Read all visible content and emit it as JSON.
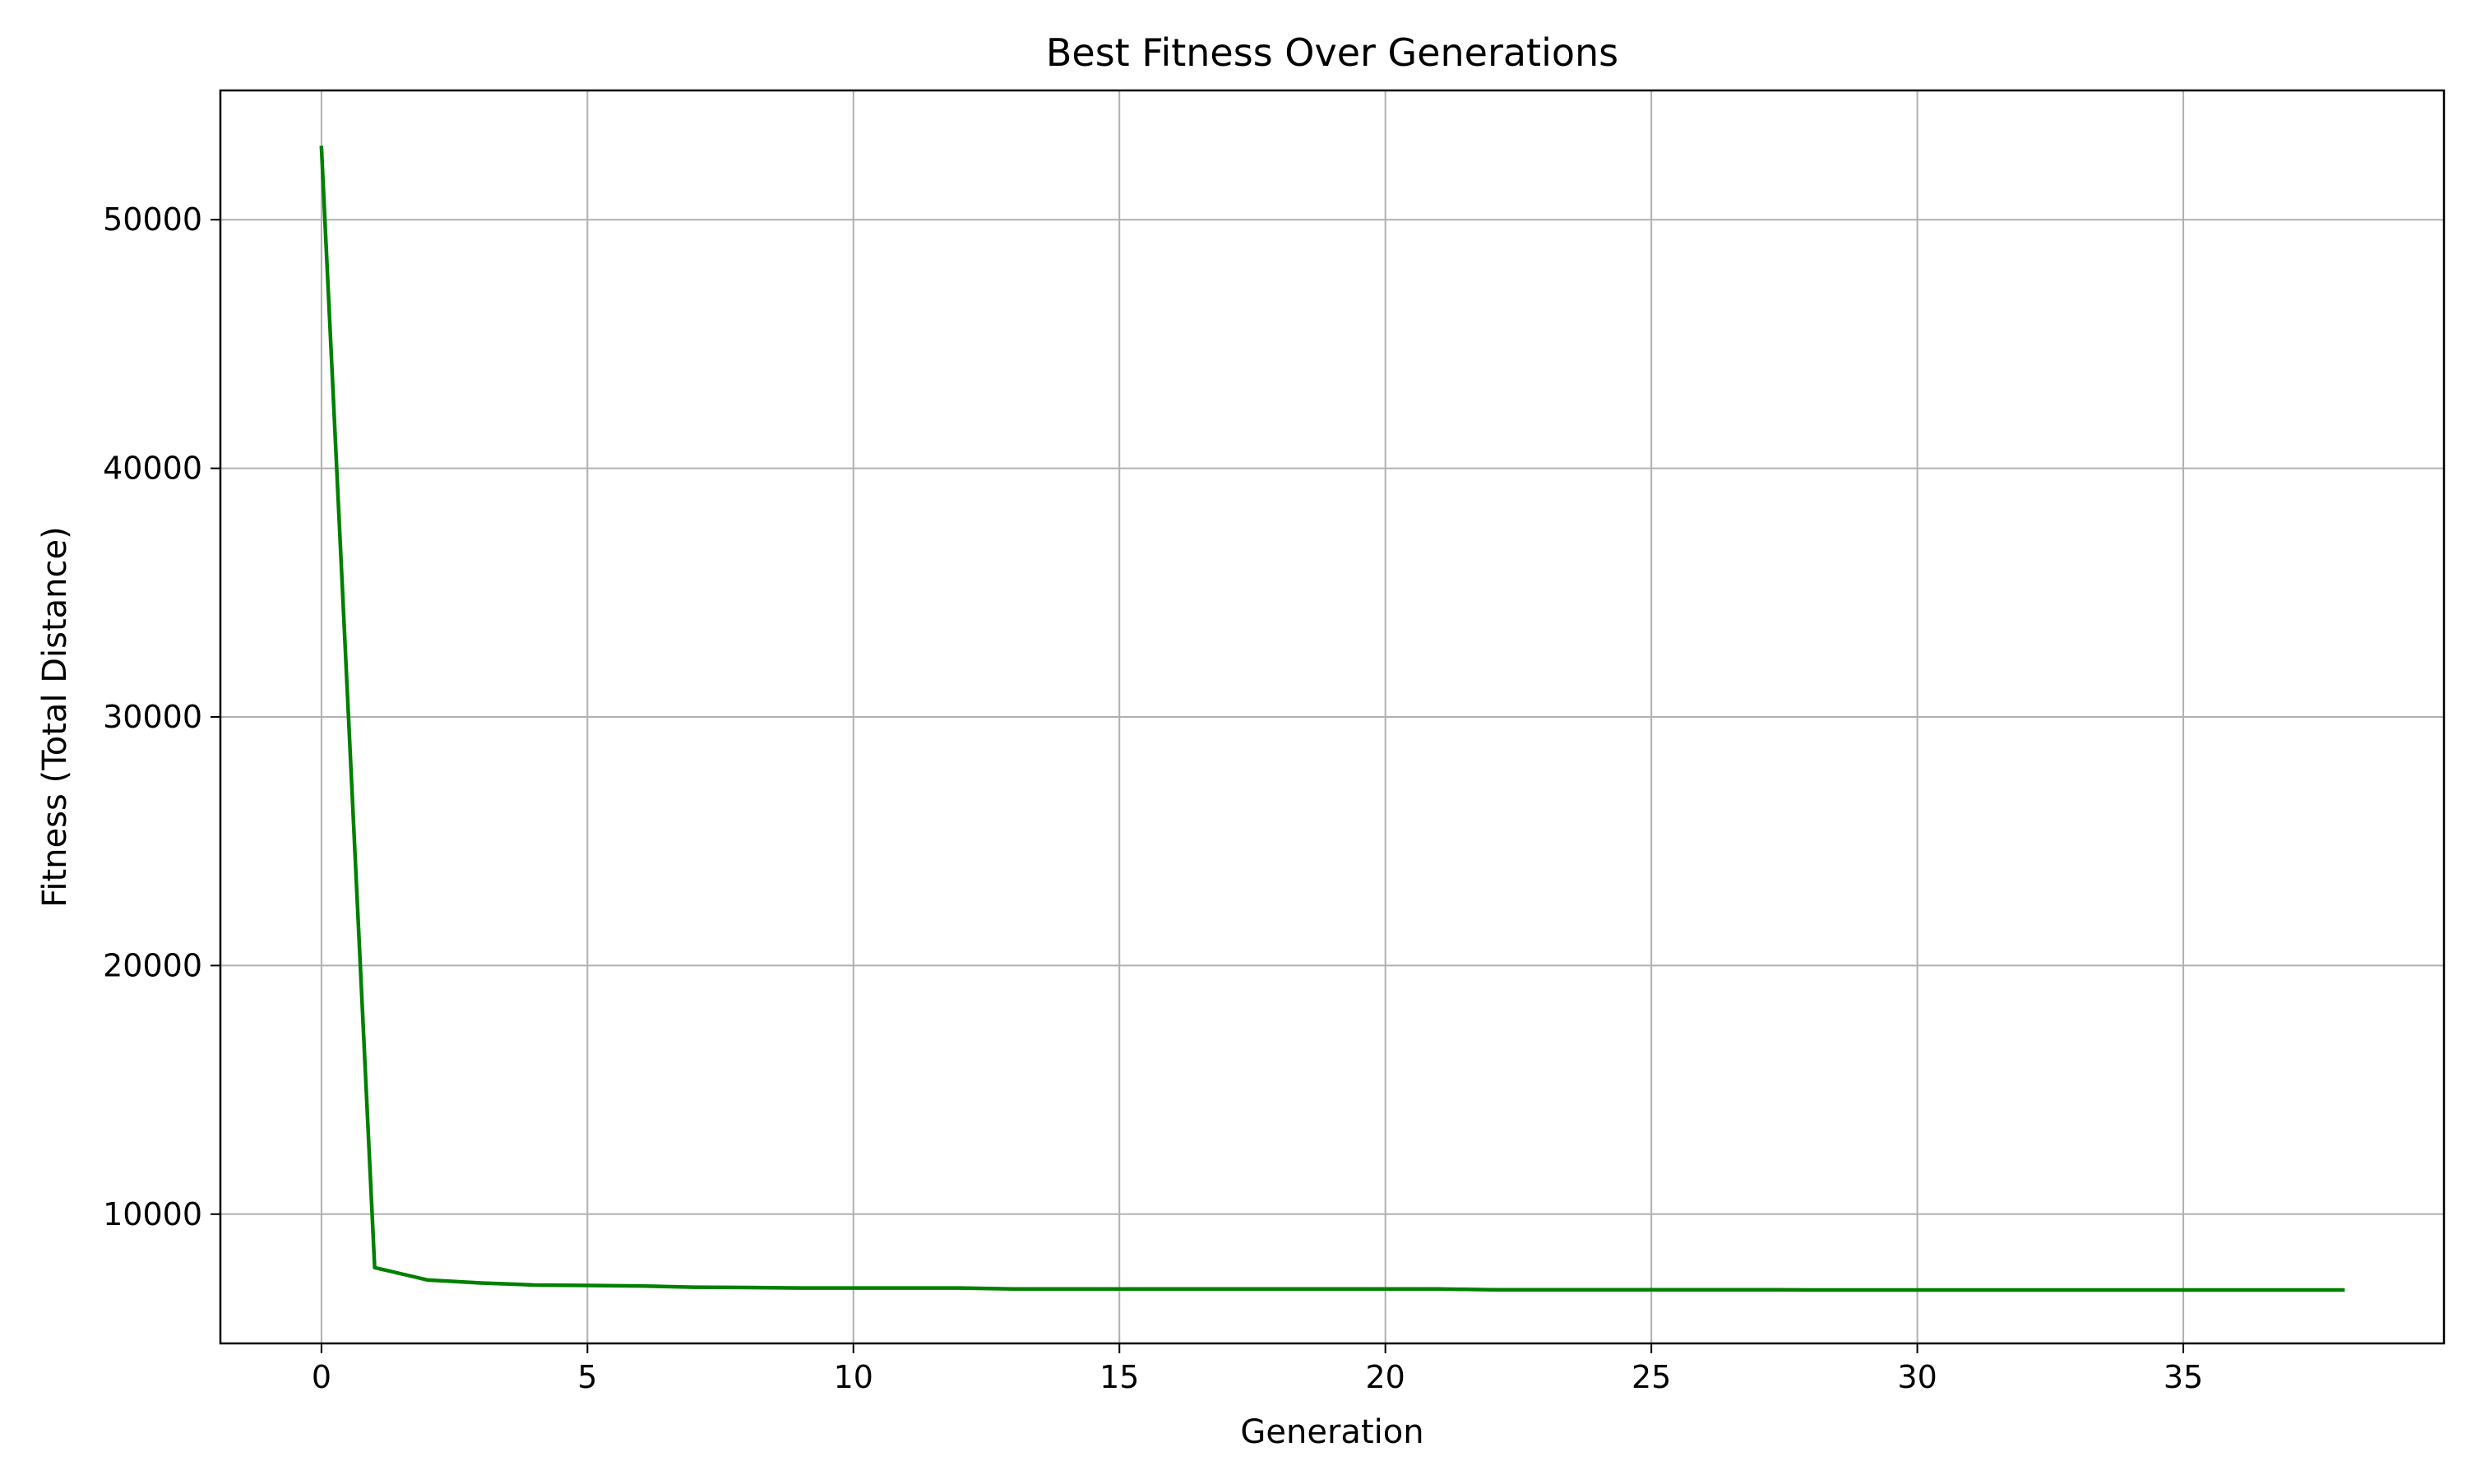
{
  "chart_data": {
    "type": "line",
    "title": "Best Fitness Over Generations",
    "xlabel": "Generation",
    "ylabel": "Fitness (Total Distance)",
    "xlim": [
      -1.9,
      39.9
    ],
    "ylim": [
      4800,
      55200
    ],
    "xticks": [
      0,
      5,
      10,
      15,
      20,
      25,
      30,
      35
    ],
    "yticks": [
      10000,
      20000,
      30000,
      40000,
      50000
    ],
    "grid": true,
    "series": [
      {
        "color": "#008000",
        "x": [
          0,
          1,
          2,
          3,
          4,
          5,
          6,
          7,
          8,
          9,
          10,
          11,
          12,
          13,
          14,
          15,
          16,
          17,
          18,
          19,
          20,
          21,
          22,
          23,
          24,
          25,
          26,
          27,
          28,
          29,
          30,
          31,
          32,
          33,
          34,
          35,
          36,
          37,
          38
        ],
        "y": [
          52900,
          7850,
          7350,
          7230,
          7150,
          7130,
          7110,
          7060,
          7050,
          7030,
          7030,
          7030,
          7030,
          6990,
          6990,
          6990,
          6990,
          6990,
          6990,
          6990,
          6990,
          6990,
          6960,
          6960,
          6960,
          6960,
          6960,
          6960,
          6950,
          6950,
          6950,
          6950,
          6950,
          6950,
          6950,
          6950,
          6950,
          6950,
          6950
        ]
      }
    ]
  }
}
